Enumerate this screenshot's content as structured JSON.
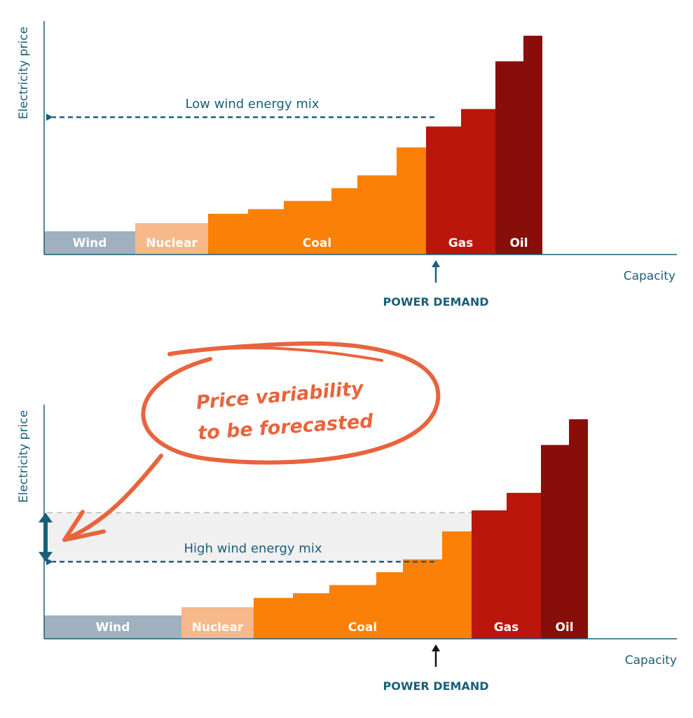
{
  "colors": {
    "axis": "#1a5f7a",
    "wind": "#9fb0bf",
    "nuclear": "#f7b88a",
    "coal": "#fa8008",
    "gas": "#bb160c",
    "oil": "#880e0a",
    "band": "#f0f0f0",
    "annotation": "#e8643c",
    "demand_arrow_top": "#1a5f7a",
    "demand_arrow_bottom": "#111111"
  },
  "annotation": {
    "line1": "Price variability",
    "line2": "to be forecasted"
  },
  "chart_data": [
    {
      "type": "bar",
      "subtype": "merit-order",
      "ylabel": "Electricity price",
      "xlabel": "Capacity",
      "mix_label": "Low wind energy mix",
      "demand_label": "POWER DEMAND",
      "demand_capacity": 559,
      "clearing_price": 5.9,
      "xlim": [
        0,
        900
      ],
      "ylim": [
        0,
        10
      ],
      "segments": [
        {
          "name": "Wind",
          "color_key": "wind",
          "steps": [
            [
              0,
              130,
              1.0
            ]
          ]
        },
        {
          "name": "Nuclear",
          "color_key": "nuclear",
          "steps": [
            [
              130,
              234,
              1.35
            ]
          ]
        },
        {
          "name": "Coal",
          "color_key": "coal",
          "steps": [
            [
              234,
              291,
              1.75
            ],
            [
              291,
              342,
              1.95
            ],
            [
              342,
              410,
              2.3
            ],
            [
              410,
              447,
              2.85
            ],
            [
              447,
              503,
              3.4
            ],
            [
              503,
              545,
              4.6
            ]
          ]
        },
        {
          "name": "Gas",
          "color_key": "gas",
          "steps": [
            [
              545,
              595,
              5.5
            ],
            [
              595,
              644,
              6.25
            ]
          ]
        },
        {
          "name": "Oil",
          "color_key": "oil",
          "steps": [
            [
              644,
              684,
              8.3
            ],
            [
              684,
              711,
              9.4
            ]
          ]
        }
      ]
    },
    {
      "type": "bar",
      "subtype": "merit-order",
      "ylabel": "Electricity price",
      "xlabel": "Capacity",
      "mix_label": "High wind energy mix",
      "demand_label": "POWER DEMAND",
      "demand_capacity": 559,
      "clearing_price": 3.3,
      "variability_range": [
        3.3,
        5.4
      ],
      "xlim": [
        0,
        900
      ],
      "ylim": [
        0,
        10
      ],
      "segments": [
        {
          "name": "Wind",
          "color_key": "wind",
          "steps": [
            [
              0,
              196,
              1.0
            ]
          ]
        },
        {
          "name": "Nuclear",
          "color_key": "nuclear",
          "steps": [
            [
              196,
              299,
              1.35
            ]
          ]
        },
        {
          "name": "Coal",
          "color_key": "coal",
          "steps": [
            [
              299,
              355,
              1.75
            ],
            [
              355,
              407,
              1.95
            ],
            [
              407,
              474,
              2.3
            ],
            [
              474,
              512,
              2.85
            ],
            [
              512,
              568,
              3.4
            ],
            [
              568,
              610,
              4.6
            ]
          ]
        },
        {
          "name": "Gas",
          "color_key": "gas",
          "steps": [
            [
              610,
              660,
              5.5
            ],
            [
              660,
              709,
              6.25
            ]
          ]
        },
        {
          "name": "Oil",
          "color_key": "oil",
          "steps": [
            [
              709,
              749,
              8.3
            ],
            [
              749,
              776,
              9.4
            ]
          ]
        }
      ]
    }
  ]
}
